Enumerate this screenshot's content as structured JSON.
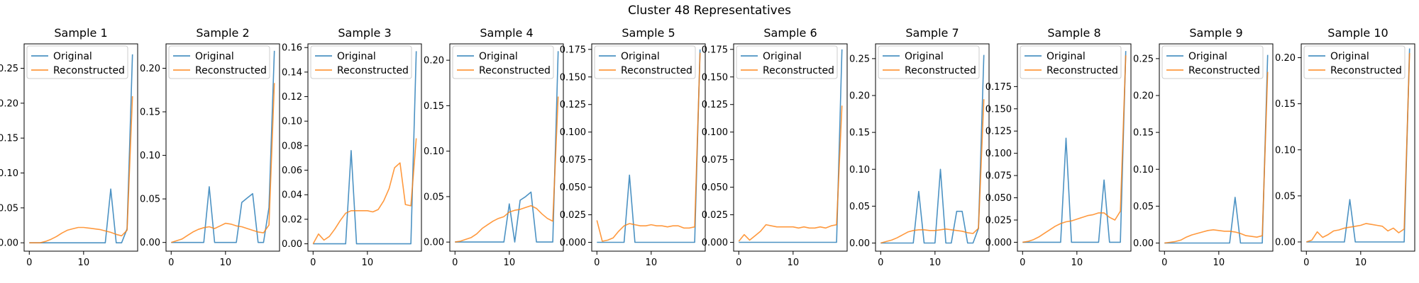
{
  "suptitle": "Cluster 48 Representatives",
  "colors": {
    "original": "#1f77b4",
    "reconstructed": "#ff7f0e"
  },
  "legend": {
    "original": "Original",
    "reconstructed": "Reconstructed",
    "placement": "upper-left"
  },
  "chart_data": [
    {
      "type": "line",
      "title": "Sample 1",
      "x": [
        0,
        1,
        2,
        3,
        4,
        5,
        6,
        7,
        8,
        9,
        10,
        11,
        12,
        13,
        14,
        15,
        16,
        17,
        18,
        19
      ],
      "xticks": [
        0,
        10
      ],
      "yticks": [
        0.0,
        0.05,
        0.1,
        0.15,
        0.2,
        0.25
      ],
      "ylim": [
        -0.012,
        0.285
      ],
      "series": [
        {
          "name": "Original",
          "values": [
            0,
            0,
            0,
            0,
            0,
            0,
            0,
            0,
            0,
            0,
            0,
            0,
            0,
            0,
            0,
            0.077,
            0,
            0,
            0.02,
            0.27
          ]
        },
        {
          "name": "Reconstructed",
          "values": [
            0,
            0,
            0,
            0.002,
            0.005,
            0.009,
            0.014,
            0.018,
            0.02,
            0.022,
            0.022,
            0.021,
            0.02,
            0.019,
            0.017,
            0.015,
            0.012,
            0.01,
            0.018,
            0.21
          ]
        }
      ]
    },
    {
      "type": "line",
      "title": "Sample 2",
      "x": [
        0,
        1,
        2,
        3,
        4,
        5,
        6,
        7,
        8,
        9,
        10,
        11,
        12,
        13,
        14,
        15,
        16,
        17,
        18,
        19
      ],
      "xticks": [
        0,
        10
      ],
      "yticks": [
        0.0,
        0.05,
        0.1,
        0.15,
        0.2
      ],
      "ylim": [
        -0.01,
        0.228
      ],
      "series": [
        {
          "name": "Original",
          "values": [
            0,
            0,
            0,
            0,
            0,
            0,
            0,
            0.064,
            0,
            0,
            0,
            0,
            0,
            0.046,
            0.051,
            0.056,
            0,
            0,
            0.04,
            0.22
          ]
        },
        {
          "name": "Reconstructed",
          "values": [
            0,
            0.002,
            0.004,
            0.008,
            0.012,
            0.015,
            0.017,
            0.018,
            0.016,
            0.019,
            0.022,
            0.021,
            0.019,
            0.018,
            0.016,
            0.014,
            0.012,
            0.011,
            0.02,
            0.183
          ]
        }
      ]
    },
    {
      "type": "line",
      "title": "Sample 3",
      "x": [
        0,
        1,
        2,
        3,
        4,
        5,
        6,
        7,
        8,
        9,
        10,
        11,
        12,
        13,
        14,
        15,
        16,
        17,
        18,
        19
      ],
      "xticks": [
        0,
        10
      ],
      "yticks": [
        0.0,
        0.02,
        0.04,
        0.06,
        0.08,
        0.1,
        0.12,
        0.14,
        0.16
      ],
      "ylim": [
        -0.006,
        0.163
      ],
      "series": [
        {
          "name": "Original",
          "values": [
            0,
            0,
            0,
            0,
            0,
            0,
            0,
            0.076,
            0,
            0,
            0,
            0,
            0,
            0,
            0,
            0,
            0,
            0,
            0,
            0.157
          ]
        },
        {
          "name": "Reconstructed",
          "values": [
            0,
            0.008,
            0.003,
            0.006,
            0.012,
            0.019,
            0.025,
            0.027,
            0.027,
            0.027,
            0.027,
            0.026,
            0.028,
            0.035,
            0.045,
            0.062,
            0.066,
            0.032,
            0.031,
            0.086
          ]
        }
      ]
    },
    {
      "type": "line",
      "title": "Sample 4",
      "x": [
        0,
        1,
        2,
        3,
        4,
        5,
        6,
        7,
        8,
        9,
        10,
        11,
        12,
        13,
        14,
        15,
        16,
        17,
        18,
        19
      ],
      "xticks": [
        0,
        10
      ],
      "yticks": [
        0.0,
        0.05,
        0.1,
        0.15,
        0.2
      ],
      "ylim": [
        -0.01,
        0.218
      ],
      "series": [
        {
          "name": "Original",
          "values": [
            0,
            0,
            0,
            0,
            0,
            0,
            0,
            0,
            0,
            0,
            0.042,
            0,
            0.046,
            0.05,
            0.055,
            0,
            0,
            0,
            0,
            0.21
          ]
        },
        {
          "name": "Reconstructed",
          "values": [
            0,
            0.001,
            0.003,
            0.005,
            0.009,
            0.015,
            0.019,
            0.023,
            0.026,
            0.028,
            0.033,
            0.035,
            0.036,
            0.038,
            0.04,
            0.037,
            0.031,
            0.026,
            0.023,
            0.16
          ]
        }
      ]
    },
    {
      "type": "line",
      "title": "Sample 5",
      "x": [
        0,
        1,
        2,
        3,
        4,
        5,
        6,
        7,
        8,
        9,
        10,
        11,
        12,
        13,
        14,
        15,
        16,
        17,
        18,
        19
      ],
      "xticks": [
        0,
        10
      ],
      "yticks": [
        0.0,
        0.025,
        0.05,
        0.075,
        0.1,
        0.125,
        0.15,
        0.175
      ],
      "ylim": [
        -0.008,
        0.18
      ],
      "series": [
        {
          "name": "Original",
          "values": [
            0,
            0,
            0,
            0,
            0,
            0,
            0.061,
            0,
            0,
            0,
            0,
            0,
            0,
            0,
            0,
            0,
            0,
            0,
            0,
            0.175
          ]
        },
        {
          "name": "Reconstructed",
          "values": [
            0.02,
            0.001,
            0.002,
            0.004,
            0.01,
            0.015,
            0.017,
            0.016,
            0.015,
            0.015,
            0.016,
            0.015,
            0.015,
            0.014,
            0.015,
            0.015,
            0.013,
            0.013,
            0.014,
            0.172
          ]
        }
      ]
    },
    {
      "type": "line",
      "title": "Sample 6",
      "x": [
        0,
        1,
        2,
        3,
        4,
        5,
        6,
        7,
        8,
        9,
        10,
        11,
        12,
        13,
        14,
        15,
        16,
        17,
        18,
        19
      ],
      "xticks": [
        0,
        10
      ],
      "yticks": [
        0.0,
        0.025,
        0.05,
        0.075,
        0.1,
        0.125,
        0.15,
        0.175
      ],
      "ylim": [
        -0.008,
        0.18
      ],
      "series": [
        {
          "name": "Original",
          "values": [
            0,
            0,
            0,
            0,
            0,
            0,
            0,
            0,
            0,
            0,
            0,
            0,
            0,
            0,
            0,
            0,
            0,
            0,
            0,
            0.175
          ]
        },
        {
          "name": "Reconstructed",
          "values": [
            0.001,
            0.007,
            0.002,
            0.006,
            0.01,
            0.016,
            0.015,
            0.014,
            0.014,
            0.014,
            0.014,
            0.013,
            0.014,
            0.013,
            0.013,
            0.014,
            0.013,
            0.015,
            0.016,
            0.124
          ]
        }
      ]
    },
    {
      "type": "line",
      "title": "Sample 7",
      "x": [
        0,
        1,
        2,
        3,
        4,
        5,
        6,
        7,
        8,
        9,
        10,
        11,
        12,
        13,
        14,
        15,
        16,
        17,
        18,
        19
      ],
      "xticks": [
        0,
        10
      ],
      "yticks": [
        0.0,
        0.05,
        0.1,
        0.15,
        0.2,
        0.25
      ],
      "ylim": [
        -0.011,
        0.27
      ],
      "series": [
        {
          "name": "Original",
          "values": [
            0,
            0,
            0,
            0,
            0,
            0,
            0,
            0.07,
            0,
            0,
            0,
            0.1,
            0,
            0,
            0.043,
            0.043,
            0,
            0,
            0.02,
            0.255
          ]
        },
        {
          "name": "Reconstructed",
          "values": [
            0,
            0.002,
            0.004,
            0.007,
            0.011,
            0.015,
            0.017,
            0.018,
            0.018,
            0.017,
            0.017,
            0.018,
            0.019,
            0.018,
            0.017,
            0.016,
            0.014,
            0.013,
            0.02,
            0.195
          ]
        }
      ]
    },
    {
      "type": "line",
      "title": "Sample 8",
      "x": [
        0,
        1,
        2,
        3,
        4,
        5,
        6,
        7,
        8,
        9,
        10,
        11,
        12,
        13,
        14,
        15,
        16,
        17,
        18,
        19
      ],
      "xticks": [
        0,
        10
      ],
      "yticks": [
        0.0,
        0.025,
        0.05,
        0.075,
        0.1,
        0.125,
        0.15,
        0.175
      ],
      "ylim": [
        -0.01,
        0.223
      ],
      "series": [
        {
          "name": "Original",
          "values": [
            0,
            0,
            0,
            0,
            0,
            0,
            0,
            0,
            0.117,
            0,
            0,
            0,
            0,
            0,
            0,
            0.07,
            0,
            0,
            0,
            0.215
          ]
        },
        {
          "name": "Reconstructed",
          "values": [
            0,
            0.001,
            0.003,
            0.006,
            0.01,
            0.014,
            0.018,
            0.021,
            0.023,
            0.024,
            0.026,
            0.028,
            0.03,
            0.031,
            0.033,
            0.033,
            0.028,
            0.025,
            0.035,
            0.21
          ]
        }
      ]
    },
    {
      "type": "line",
      "title": "Sample 9",
      "x": [
        0,
        1,
        2,
        3,
        4,
        5,
        6,
        7,
        8,
        9,
        10,
        11,
        12,
        13,
        14,
        15,
        16,
        17,
        18,
        19
      ],
      "xticks": [
        0,
        10
      ],
      "yticks": [
        0.0,
        0.05,
        0.1,
        0.15,
        0.2,
        0.25
      ],
      "ylim": [
        -0.011,
        0.27
      ],
      "series": [
        {
          "name": "Original",
          "values": [
            0,
            0,
            0,
            0,
            0,
            0,
            0,
            0,
            0,
            0,
            0,
            0,
            0,
            0.062,
            0,
            0,
            0,
            0,
            0,
            0.255
          ]
        },
        {
          "name": "Reconstructed",
          "values": [
            0,
            0.001,
            0.002,
            0.004,
            0.008,
            0.011,
            0.013,
            0.015,
            0.017,
            0.018,
            0.017,
            0.016,
            0.016,
            0.015,
            0.013,
            0.01,
            0.009,
            0.008,
            0.01,
            0.232
          ]
        }
      ]
    },
    {
      "type": "line",
      "title": "Sample 10",
      "x": [
        0,
        1,
        2,
        3,
        4,
        5,
        6,
        7,
        8,
        9,
        10,
        11,
        12,
        13,
        14,
        15,
        16,
        17,
        18,
        19
      ],
      "xticks": [
        0,
        10
      ],
      "yticks": [
        0.0,
        0.05,
        0.1,
        0.15,
        0.2
      ],
      "ylim": [
        -0.01,
        0.215
      ],
      "series": [
        {
          "name": "Original",
          "values": [
            0,
            0,
            0,
            0,
            0,
            0,
            0,
            0,
            0.046,
            0,
            0,
            0,
            0,
            0,
            0,
            0,
            0,
            0,
            0,
            0.21
          ]
        },
        {
          "name": "Reconstructed",
          "values": [
            0,
            0.002,
            0.011,
            0.005,
            0.008,
            0.012,
            0.013,
            0.015,
            0.016,
            0.017,
            0.018,
            0.02,
            0.019,
            0.018,
            0.017,
            0.012,
            0.015,
            0.01,
            0.014,
            0.205
          ]
        }
      ]
    }
  ]
}
